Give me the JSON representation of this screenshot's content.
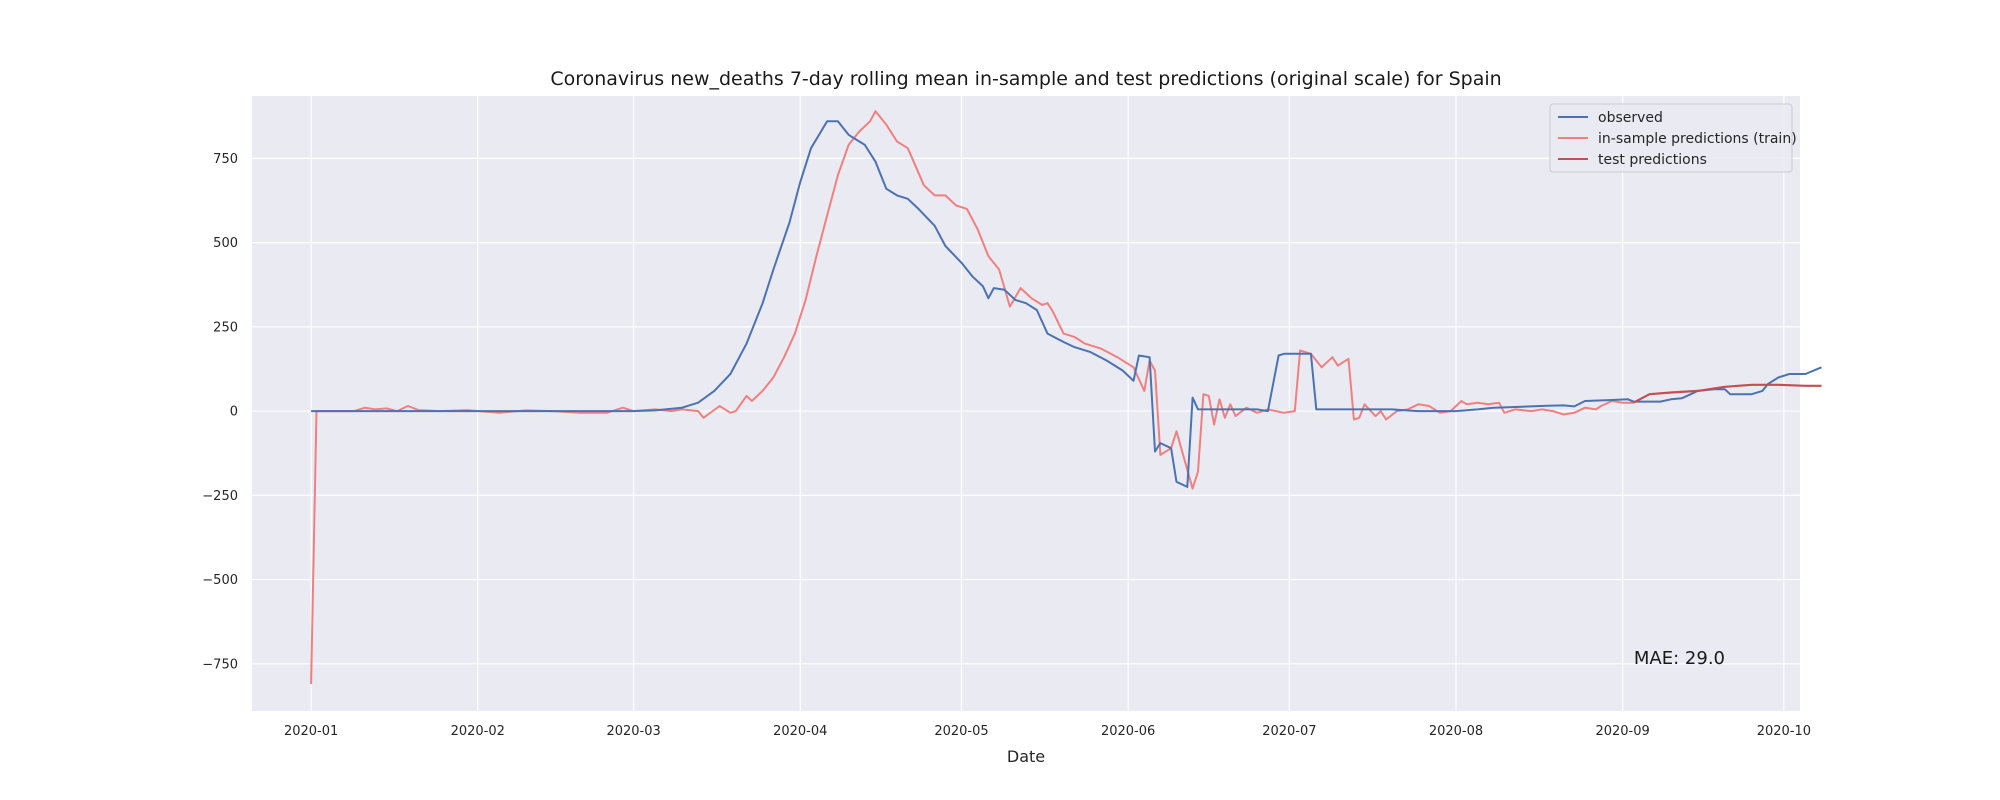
{
  "chart_data": {
    "type": "line",
    "title": "Coronavirus new_deaths 7-day rolling mean in-sample and test predictions (original scale) for Spain",
    "xlabel": "Date",
    "ylabel": "",
    "x_ticks": [
      "2020-01",
      "2020-02",
      "2020-03",
      "2020-04",
      "2020-05",
      "2020-06",
      "2020-07",
      "2020-08",
      "2020-09",
      "2020-10"
    ],
    "y_ticks": [
      -750,
      -500,
      -250,
      0,
      250,
      500,
      750
    ],
    "xlim": [
      "2019-12-21",
      "2020-10-04"
    ],
    "ylim": [
      -890,
      935
    ],
    "grid": true,
    "legend_position": "top-right",
    "annotation": "MAE: 29.0",
    "colors": {
      "background": "#eaeaf2",
      "grid": "#ffffff",
      "observed": "#4c72b0",
      "train": "#f08080",
      "test": "#c44e52"
    },
    "series": [
      {
        "name": "observed",
        "color": "#4c72b0",
        "points": [
          [
            "2020-01-01",
            0
          ],
          [
            "2020-02-15",
            0
          ],
          [
            "2020-03-01",
            0
          ],
          [
            "2020-03-05",
            2
          ],
          [
            "2020-03-10",
            10
          ],
          [
            "2020-03-13",
            25
          ],
          [
            "2020-03-16",
            60
          ],
          [
            "2020-03-19",
            110
          ],
          [
            "2020-03-22",
            200
          ],
          [
            "2020-03-25",
            320
          ],
          [
            "2020-03-27",
            420
          ],
          [
            "2020-03-30",
            560
          ],
          [
            "2020-04-01",
            680
          ],
          [
            "2020-04-03",
            780
          ],
          [
            "2020-04-06",
            860
          ],
          [
            "2020-04-08",
            860
          ],
          [
            "2020-04-10",
            820
          ],
          [
            "2020-04-13",
            790
          ],
          [
            "2020-04-15",
            740
          ],
          [
            "2020-04-17",
            660
          ],
          [
            "2020-04-19",
            640
          ],
          [
            "2020-04-21",
            630
          ],
          [
            "2020-04-23",
            600
          ],
          [
            "2020-04-26",
            550
          ],
          [
            "2020-04-28",
            490
          ],
          [
            "2020-05-01",
            440
          ],
          [
            "2020-05-03",
            400
          ],
          [
            "2020-05-05",
            370
          ],
          [
            "2020-05-06",
            335
          ],
          [
            "2020-05-07",
            365
          ],
          [
            "2020-05-09",
            360
          ],
          [
            "2020-05-11",
            330
          ],
          [
            "2020-05-13",
            320
          ],
          [
            "2020-05-15",
            300
          ],
          [
            "2020-05-17",
            230
          ],
          [
            "2020-05-20",
            205
          ],
          [
            "2020-05-22",
            190
          ],
          [
            "2020-05-25",
            175
          ],
          [
            "2020-05-28",
            150
          ],
          [
            "2020-05-31",
            120
          ],
          [
            "2020-06-02",
            90
          ],
          [
            "2020-06-03",
            165
          ],
          [
            "2020-06-05",
            160
          ],
          [
            "2020-06-06",
            -120
          ],
          [
            "2020-06-07",
            -95
          ],
          [
            "2020-06-09",
            -110
          ],
          [
            "2020-06-10",
            -210
          ],
          [
            "2020-06-12",
            -225
          ],
          [
            "2020-06-13",
            40
          ],
          [
            "2020-06-14",
            5
          ],
          [
            "2020-06-16",
            5
          ],
          [
            "2020-06-20",
            5
          ],
          [
            "2020-06-25",
            5
          ],
          [
            "2020-06-27",
            0
          ],
          [
            "2020-06-29",
            165
          ],
          [
            "2020-06-30",
            170
          ],
          [
            "2020-07-03",
            170
          ],
          [
            "2020-07-05",
            170
          ],
          [
            "2020-07-06",
            5
          ],
          [
            "2020-07-10",
            5
          ],
          [
            "2020-07-20",
            5
          ],
          [
            "2020-07-25",
            0
          ],
          [
            "2020-08-01",
            0
          ],
          [
            "2020-08-05",
            5
          ],
          [
            "2020-08-08",
            10
          ],
          [
            "2020-08-12",
            12
          ],
          [
            "2020-08-18",
            16
          ],
          [
            "2020-08-21",
            17
          ],
          [
            "2020-08-23",
            14
          ],
          [
            "2020-08-25",
            30
          ],
          [
            "2020-08-30",
            33
          ],
          [
            "2020-09-02",
            35
          ],
          [
            "2020-09-03",
            28
          ],
          [
            "2020-09-08",
            28
          ],
          [
            "2020-09-10",
            35
          ],
          [
            "2020-09-12",
            38
          ],
          [
            "2020-09-15",
            60
          ],
          [
            "2020-09-18",
            65
          ],
          [
            "2020-09-20",
            65
          ],
          [
            "2020-09-21",
            50
          ],
          [
            "2020-09-25",
            50
          ],
          [
            "2020-09-27",
            60
          ],
          [
            "2020-09-28",
            80
          ],
          [
            "2020-09-30",
            100
          ],
          [
            "2020-10-02",
            110
          ],
          [
            "2020-10-05",
            110
          ],
          [
            "2020-10-08",
            130
          ]
        ]
      },
      {
        "name": "in-sample predictions (train)",
        "color": "#f08080",
        "points": [
          [
            "2020-01-01",
            -810
          ],
          [
            "2020-01-02",
            0
          ],
          [
            "2020-01-06",
            0
          ],
          [
            "2020-01-09",
            0
          ],
          [
            "2020-01-11",
            10
          ],
          [
            "2020-01-13",
            5
          ],
          [
            "2020-01-15",
            8
          ],
          [
            "2020-01-17",
            0
          ],
          [
            "2020-01-19",
            15
          ],
          [
            "2020-01-21",
            3
          ],
          [
            "2020-01-25",
            0
          ],
          [
            "2020-01-30",
            3
          ],
          [
            "2020-02-05",
            -5
          ],
          [
            "2020-02-10",
            2
          ],
          [
            "2020-02-15",
            0
          ],
          [
            "2020-02-20",
            -5
          ],
          [
            "2020-02-25",
            -5
          ],
          [
            "2020-02-28",
            10
          ],
          [
            "2020-03-01",
            0
          ],
          [
            "2020-03-05",
            5
          ],
          [
            "2020-03-08",
            0
          ],
          [
            "2020-03-10",
            5
          ],
          [
            "2020-03-13",
            0
          ],
          [
            "2020-03-14",
            -20
          ],
          [
            "2020-03-17",
            15
          ],
          [
            "2020-03-19",
            -5
          ],
          [
            "2020-03-20",
            0
          ],
          [
            "2020-03-22",
            45
          ],
          [
            "2020-03-23",
            30
          ],
          [
            "2020-03-25",
            60
          ],
          [
            "2020-03-27",
            100
          ],
          [
            "2020-03-29",
            160
          ],
          [
            "2020-03-31",
            230
          ],
          [
            "2020-04-02",
            330
          ],
          [
            "2020-04-04",
            460
          ],
          [
            "2020-04-06",
            580
          ],
          [
            "2020-04-08",
            700
          ],
          [
            "2020-04-10",
            790
          ],
          [
            "2020-04-12",
            830
          ],
          [
            "2020-04-14",
            860
          ],
          [
            "2020-04-15",
            890
          ],
          [
            "2020-04-17",
            850
          ],
          [
            "2020-04-19",
            800
          ],
          [
            "2020-04-21",
            780
          ],
          [
            "2020-04-24",
            670
          ],
          [
            "2020-04-26",
            640
          ],
          [
            "2020-04-28",
            640
          ],
          [
            "2020-04-30",
            610
          ],
          [
            "2020-05-02",
            600
          ],
          [
            "2020-05-04",
            540
          ],
          [
            "2020-05-06",
            460
          ],
          [
            "2020-05-08",
            420
          ],
          [
            "2020-05-10",
            310
          ],
          [
            "2020-05-12",
            365
          ],
          [
            "2020-05-14",
            335
          ],
          [
            "2020-05-16",
            315
          ],
          [
            "2020-05-17",
            320
          ],
          [
            "2020-05-18",
            295
          ],
          [
            "2020-05-20",
            230
          ],
          [
            "2020-05-22",
            220
          ],
          [
            "2020-05-24",
            200
          ],
          [
            "2020-05-27",
            185
          ],
          [
            "2020-05-30",
            160
          ],
          [
            "2020-06-02",
            130
          ],
          [
            "2020-06-04",
            60
          ],
          [
            "2020-06-05",
            150
          ],
          [
            "2020-06-06",
            120
          ],
          [
            "2020-06-07",
            -130
          ],
          [
            "2020-06-09",
            -110
          ],
          [
            "2020-06-10",
            -60
          ],
          [
            "2020-06-13",
            -230
          ],
          [
            "2020-06-14",
            -180
          ],
          [
            "2020-06-15",
            50
          ],
          [
            "2020-06-16",
            45
          ],
          [
            "2020-06-17",
            -40
          ],
          [
            "2020-06-18",
            35
          ],
          [
            "2020-06-19",
            -20
          ],
          [
            "2020-06-20",
            20
          ],
          [
            "2020-06-21",
            -15
          ],
          [
            "2020-06-23",
            10
          ],
          [
            "2020-06-25",
            -5
          ],
          [
            "2020-06-27",
            5
          ],
          [
            "2020-06-30",
            -5
          ],
          [
            "2020-07-02",
            0
          ],
          [
            "2020-07-03",
            180
          ],
          [
            "2020-07-05",
            170
          ],
          [
            "2020-07-07",
            130
          ],
          [
            "2020-07-09",
            160
          ],
          [
            "2020-07-10",
            135
          ],
          [
            "2020-07-12",
            155
          ],
          [
            "2020-07-13",
            -25
          ],
          [
            "2020-07-14",
            -20
          ],
          [
            "2020-07-15",
            20
          ],
          [
            "2020-07-17",
            -15
          ],
          [
            "2020-07-18",
            0
          ],
          [
            "2020-07-19",
            -25
          ],
          [
            "2020-07-21",
            0
          ],
          [
            "2020-07-23",
            5
          ],
          [
            "2020-07-25",
            20
          ],
          [
            "2020-07-27",
            15
          ],
          [
            "2020-07-29",
            -5
          ],
          [
            "2020-07-31",
            0
          ],
          [
            "2020-08-02",
            30
          ],
          [
            "2020-08-03",
            20
          ],
          [
            "2020-08-05",
            25
          ],
          [
            "2020-08-07",
            20
          ],
          [
            "2020-08-09",
            25
          ],
          [
            "2020-08-10",
            -5
          ],
          [
            "2020-08-12",
            5
          ],
          [
            "2020-08-15",
            0
          ],
          [
            "2020-08-17",
            5
          ],
          [
            "2020-08-19",
            0
          ],
          [
            "2020-08-21",
            -10
          ],
          [
            "2020-08-23",
            -5
          ],
          [
            "2020-08-25",
            10
          ],
          [
            "2020-08-27",
            5
          ],
          [
            "2020-08-28",
            15
          ],
          [
            "2020-08-30",
            30
          ],
          [
            "2020-09-01",
            25
          ],
          [
            "2020-09-03",
            25
          ]
        ]
      },
      {
        "name": "test predictions",
        "color": "#c44e52",
        "points": [
          [
            "2020-09-03",
            25
          ],
          [
            "2020-09-06",
            50
          ],
          [
            "2020-09-10",
            55
          ],
          [
            "2020-09-15",
            60
          ],
          [
            "2020-09-20",
            72
          ],
          [
            "2020-09-25",
            78
          ],
          [
            "2020-09-30",
            78
          ],
          [
            "2020-10-05",
            75
          ],
          [
            "2020-10-08",
            75
          ]
        ]
      }
    ]
  }
}
